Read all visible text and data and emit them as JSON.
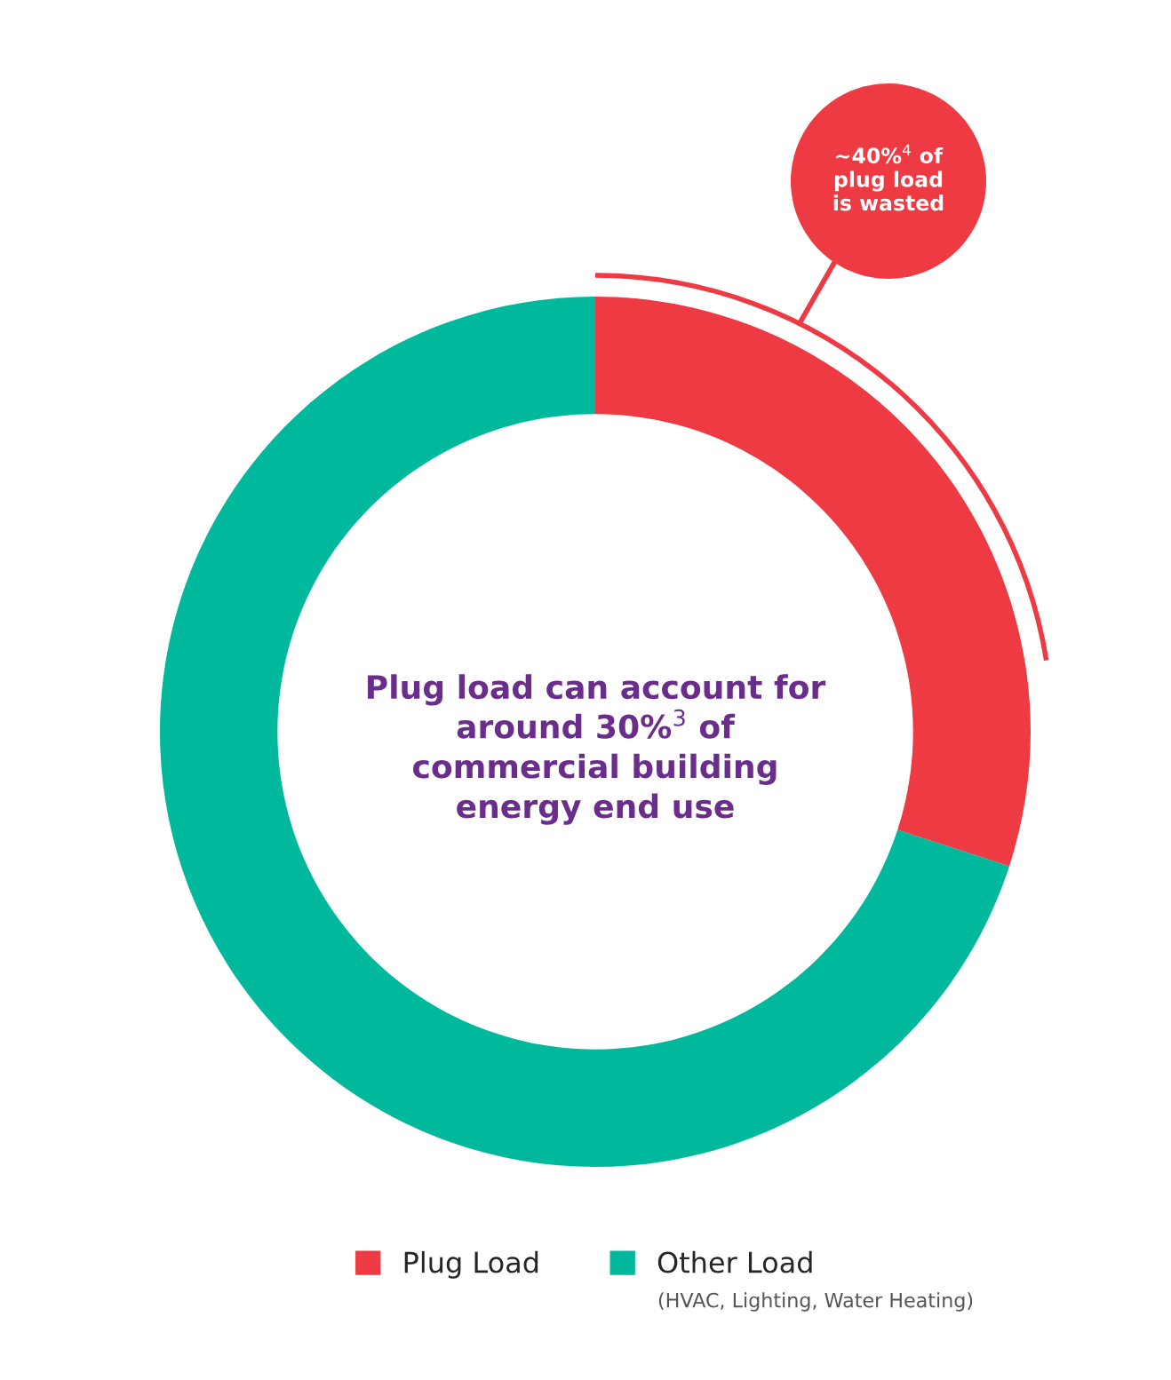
{
  "chart_data": {
    "type": "donut",
    "categories": [
      "Plug Load",
      "Other Load"
    ],
    "values": [
      30,
      70
    ],
    "colors": [
      "#ee3a42",
      "#00b89c"
    ],
    "legend": "bottom",
    "annotations": [
      "Plug load can account for around 30%$^{3}$ of commercial building energy end use",
      "~40%$^{4}$ of plug load is wasted",
      "(HVAC, Lighting, Water Heating)"
    ]
  }
}
